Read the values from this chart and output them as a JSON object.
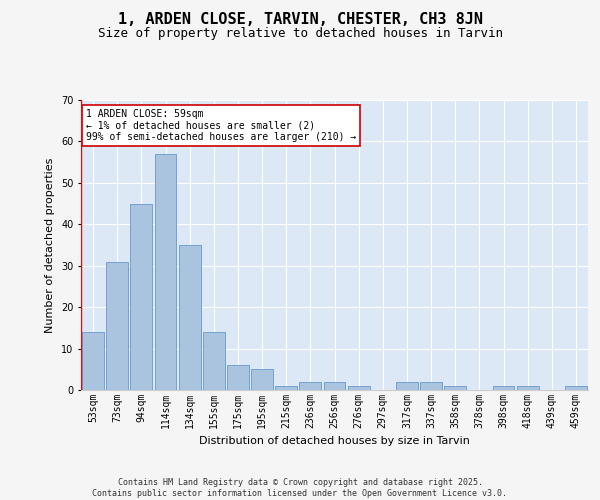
{
  "title": "1, ARDEN CLOSE, TARVIN, CHESTER, CH3 8JN",
  "subtitle": "Size of property relative to detached houses in Tarvin",
  "xlabel": "Distribution of detached houses by size in Tarvin",
  "ylabel": "Number of detached properties",
  "categories": [
    "53sqm",
    "73sqm",
    "94sqm",
    "114sqm",
    "134sqm",
    "155sqm",
    "175sqm",
    "195sqm",
    "215sqm",
    "236sqm",
    "256sqm",
    "276sqm",
    "297sqm",
    "317sqm",
    "337sqm",
    "358sqm",
    "378sqm",
    "398sqm",
    "418sqm",
    "439sqm",
    "459sqm"
  ],
  "values": [
    14,
    31,
    45,
    57,
    35,
    14,
    6,
    5,
    1,
    2,
    2,
    1,
    0,
    2,
    2,
    1,
    0,
    1,
    1,
    0,
    1
  ],
  "bar_color": "#aac4e0",
  "bar_edge_color": "#6699cc",
  "annotation_text": "1 ARDEN CLOSE: 59sqm\n← 1% of detached houses are smaller (2)\n99% of semi-detached houses are larger (210) →",
  "annotation_box_color": "#ffffff",
  "annotation_box_edge": "#cc0000",
  "ylim": [
    0,
    70
  ],
  "yticks": [
    0,
    10,
    20,
    30,
    40,
    50,
    60,
    70
  ],
  "background_color": "#dce8f5",
  "grid_color": "#ffffff",
  "footer": "Contains HM Land Registry data © Crown copyright and database right 2025.\nContains public sector information licensed under the Open Government Licence v3.0.",
  "title_fontsize": 11,
  "subtitle_fontsize": 9,
  "ylabel_fontsize": 8,
  "xlabel_fontsize": 8,
  "tick_fontsize": 7,
  "annotation_fontsize": 7,
  "footer_fontsize": 6
}
